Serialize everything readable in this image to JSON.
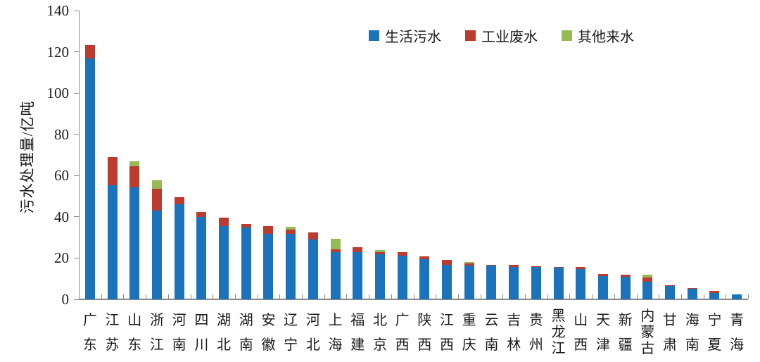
{
  "chart_data": {
    "type": "bar",
    "stacked": true,
    "title": "",
    "ylabel": "污水处理量/亿吨",
    "ylim": [
      0,
      140
    ],
    "yticks": [
      0,
      20,
      40,
      60,
      80,
      100,
      120,
      140
    ],
    "grid": false,
    "legend_position": "top-center",
    "categories": [
      "广东",
      "江苏",
      "山东",
      "浙江",
      "河南",
      "四川",
      "湖北",
      "湖南",
      "安徽",
      "辽宁",
      "河北",
      "上海",
      "福建",
      "北京",
      "广西",
      "陕西",
      "江西",
      "重庆",
      "云南",
      "吉林",
      "贵州",
      "黑龙江",
      "山西",
      "天津",
      "新疆",
      "内蒙古",
      "甘肃",
      "海南",
      "宁夏",
      "青海"
    ],
    "series": [
      {
        "name": "生活污水",
        "color": "#1B74BB",
        "values": [
          116.8,
          55.2,
          54.2,
          43.0,
          46.0,
          39.8,
          35.5,
          34.8,
          31.8,
          31.8,
          29.0,
          22.8,
          23.0,
          22.0,
          21.2,
          19.5,
          16.8,
          16.5,
          16.5,
          15.6,
          15.9,
          15.2,
          14.8,
          11.1,
          10.9,
          8.5,
          6.5,
          5.3,
          3.2,
          2.5
        ]
      },
      {
        "name": "工业废水",
        "color": "#BB3B2E",
        "values": [
          6.6,
          13.8,
          10.5,
          10.6,
          3.5,
          2.4,
          4.2,
          1.7,
          3.8,
          2.0,
          3.6,
          1.6,
          2.4,
          1.0,
          1.7,
          1.5,
          2.4,
          1.0,
          0.3,
          1.0,
          0.3,
          0.6,
          0.8,
          1.3,
          0.9,
          2.0,
          0.5,
          0.2,
          0.8,
          0.0
        ]
      },
      {
        "name": "其他来水",
        "color": "#97BB54",
        "values": [
          0.0,
          0.0,
          2.2,
          4.1,
          0.0,
          0.0,
          0.0,
          0.0,
          0.0,
          1.5,
          0.0,
          5.1,
          0.0,
          0.8,
          0.0,
          0.0,
          0.0,
          0.7,
          0.0,
          0.0,
          0.0,
          0.0,
          0.0,
          0.0,
          0.0,
          1.4,
          0.0,
          0.0,
          0.0,
          0.0
        ]
      }
    ],
    "axis_color": "#8a8a8a",
    "text_color": "#1a1a1a"
  }
}
